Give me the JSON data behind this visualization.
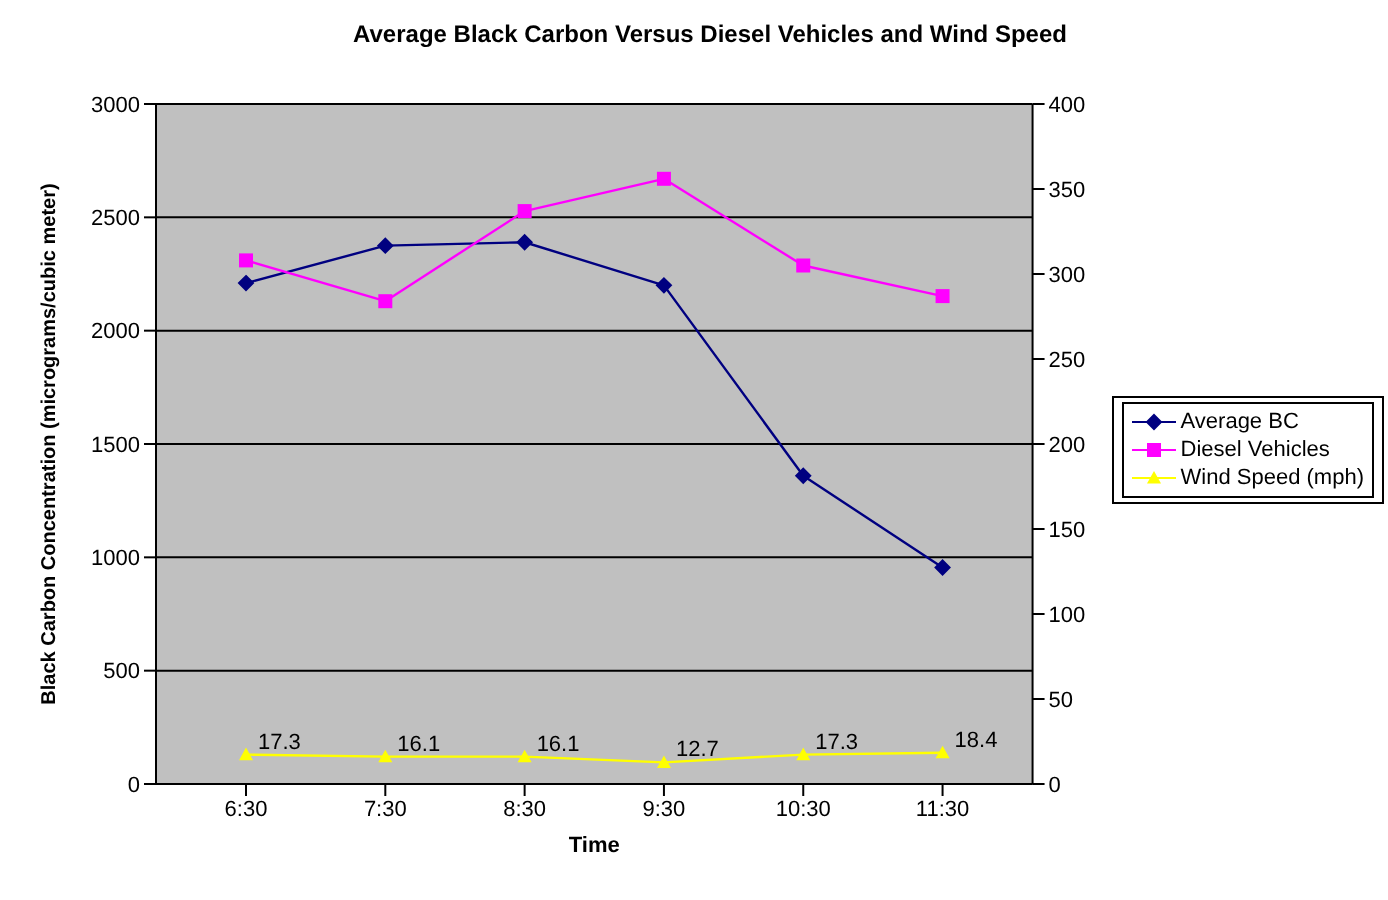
{
  "chart_data": {
    "type": "line",
    "title": "Average Black Carbon Versus Diesel Vehicles and Wind Speed",
    "xlabel": "Time",
    "ylabel": "Black Carbon Concentration (micrograms/cubic meter)",
    "categories": [
      "6:30",
      "7:30",
      "8:30",
      "9:30",
      "10:30",
      "11:30"
    ],
    "series": [
      {
        "name": "Average BC",
        "color": "#000080",
        "marker": "diamond",
        "values": [
          2210,
          2375,
          2390,
          2200,
          1360,
          955
        ]
      },
      {
        "name": "Diesel Vehicles",
        "color": "#ff00ff",
        "marker": "square",
        "axis": "y2",
        "values": [
          308,
          284,
          337,
          356,
          305,
          287
        ]
      },
      {
        "name": "Wind Speed (mph)",
        "color": "#ffff00",
        "marker": "triangle",
        "axis": "y2",
        "values": [
          17.3,
          16.1,
          16.1,
          12.7,
          17.3,
          18.4
        ],
        "value_labels": [
          "17.3",
          "16.1",
          "16.1",
          "12.7",
          "17.3",
          "18.4"
        ]
      }
    ],
    "ylim": [
      0,
      3000
    ],
    "yticks": [
      0,
      500,
      1000,
      1500,
      2000,
      2500,
      3000
    ],
    "y2lim": [
      0,
      400
    ],
    "y2ticks": [
      0,
      50,
      100,
      150,
      200,
      250,
      300,
      350,
      400
    ],
    "grid": "y",
    "legend": "right"
  }
}
